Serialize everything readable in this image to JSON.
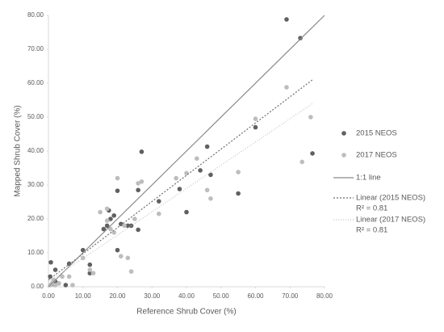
{
  "chart_data": {
    "type": "scatter",
    "x_label": "Reference Shrub Cover (%)",
    "y_label": "Mapped Shrub Cover (%)",
    "xlim": [
      0,
      80
    ],
    "ylim": [
      0,
      80
    ],
    "xticks": [
      {
        "value": 0,
        "label": "0.00"
      },
      {
        "value": 10,
        "label": "10.00"
      },
      {
        "value": 20,
        "label": "20.00"
      },
      {
        "value": 30,
        "label": "30.00"
      },
      {
        "value": 40,
        "label": "40.00"
      },
      {
        "value": 50,
        "label": "50.00"
      },
      {
        "value": 60,
        "label": "60.00"
      },
      {
        "value": 70,
        "label": "70.00"
      },
      {
        "value": 80,
        "label": "80.00"
      }
    ],
    "yticks": [
      {
        "value": 0,
        "label": "0.00"
      },
      {
        "value": 10,
        "label": "10.00"
      },
      {
        "value": 20,
        "label": "20.00"
      },
      {
        "value": 30,
        "label": "30.00"
      },
      {
        "value": 40,
        "label": "40.00"
      },
      {
        "value": 50,
        "label": "50.00"
      },
      {
        "value": 60,
        "label": "60.00"
      },
      {
        "value": 70,
        "label": "70.00"
      },
      {
        "value": 80,
        "label": "80.00"
      }
    ],
    "grid": false,
    "legend": "right",
    "series": [
      {
        "name": "2015 NEOS",
        "kind": "points",
        "color": "#606060",
        "x": [
          0.5,
          0.7,
          1.5,
          2,
          2,
          3,
          5,
          6,
          10,
          12,
          12,
          16,
          17,
          17.5,
          18,
          19,
          20,
          20,
          21,
          23,
          24,
          26,
          26,
          27,
          32,
          38,
          40,
          44,
          46,
          47,
          55,
          60,
          69,
          73,
          76.5
        ],
        "y": [
          3,
          7.2,
          0.8,
          5,
          1.5,
          1,
          0.5,
          6.8,
          10.8,
          6.5,
          4,
          17,
          18,
          22.5,
          20,
          21,
          28.3,
          10.8,
          18.5,
          18,
          18,
          28.5,
          16.8,
          39.8,
          25.2,
          28.8,
          22,
          34.3,
          41.3,
          33,
          27.5,
          47,
          78.8,
          73.3,
          39.3
        ]
      },
      {
        "name": "2017 NEOS",
        "kind": "points",
        "color": "#bdbdbd",
        "x": [
          0.5,
          1,
          1.5,
          2,
          3,
          4,
          6,
          7,
          10,
          12,
          13,
          15,
          17,
          17,
          18,
          19,
          20,
          21,
          22,
          23,
          24,
          25,
          26,
          27,
          32,
          37,
          40,
          43,
          46,
          47,
          55,
          60,
          69,
          73.5,
          76
        ],
        "y": [
          0.5,
          1,
          2,
          0.5,
          1,
          3,
          3,
          0.5,
          8.5,
          5,
          4,
          22,
          23,
          19.5,
          17,
          16,
          32,
          9,
          18,
          8.5,
          4.5,
          20,
          30.5,
          31,
          21.5,
          32,
          33.5,
          37.8,
          28.5,
          26,
          33.8,
          49.5,
          58.8,
          36.8,
          50
        ]
      },
      {
        "name": "1:1 line",
        "kind": "line",
        "color": "#8a8a8a",
        "dash": "none",
        "x": [
          0,
          80
        ],
        "y": [
          0,
          80
        ]
      },
      {
        "name": "Linear (2015 NEOS)",
        "r2": "R² = 0.81",
        "kind": "line",
        "color": "#6e6e6e",
        "dash": "2 2",
        "x": [
          0,
          76.5
        ],
        "y": [
          2,
          61
        ]
      },
      {
        "name": "Linear (2017 NEOS)",
        "r2": "R² = 0.81",
        "kind": "line",
        "color": "#c4c4c4",
        "dash": "1 2",
        "x": [
          0,
          76.5
        ],
        "y": [
          1.5,
          54
        ]
      }
    ]
  }
}
